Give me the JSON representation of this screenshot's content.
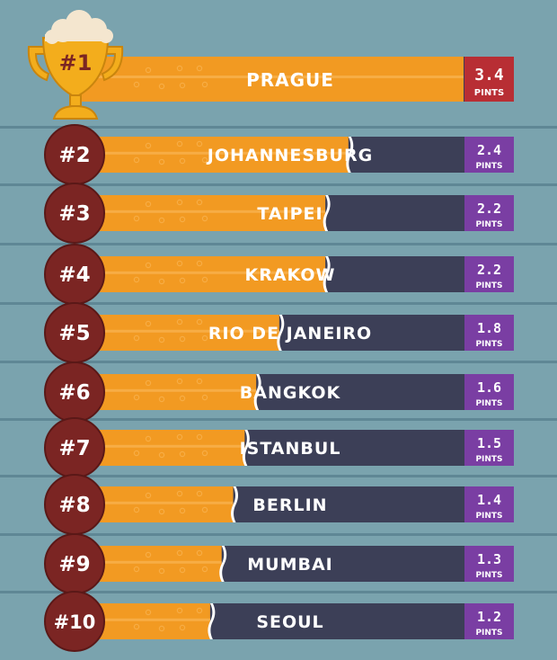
{
  "chart_data": {
    "type": "bar",
    "title": "",
    "xlabel": "",
    "ylabel": "",
    "xlim": [
      0,
      3.4
    ],
    "unit_label": "PINTS",
    "categories": [
      "PRAGUE",
      "JOHANNESBURG",
      "TAIPEI",
      "KRAKOW",
      "RIO DE JANEIRO",
      "BANGKOK",
      "ISTANBUL",
      "BERLIN",
      "MUMBAI",
      "SEOUL"
    ],
    "ranks": [
      "#1",
      "#2",
      "#3",
      "#4",
      "#5",
      "#6",
      "#7",
      "#8",
      "#9",
      "#10"
    ],
    "value_labels": [
      "3.4",
      "2.4",
      "2.2",
      "2.2",
      "1.8",
      "1.6",
      "1.5",
      "1.4",
      "1.3",
      "1.2"
    ],
    "values": [
      3.4,
      2.4,
      2.2,
      2.2,
      1.8,
      1.6,
      1.5,
      1.4,
      1.3,
      1.2
    ]
  },
  "colors": {
    "background": "#7aa3ae",
    "divider": "#5f8795",
    "beer": "#f29a22",
    "beer_stripe": "#f7ad45",
    "empty_track": "#3c3f57",
    "rank_badge": "#7b2523",
    "value_badge_top": "#b82e34",
    "value_badge": "#7a3ea3",
    "trophy": "#f3ad1c",
    "foam": "#f4e6cf"
  }
}
